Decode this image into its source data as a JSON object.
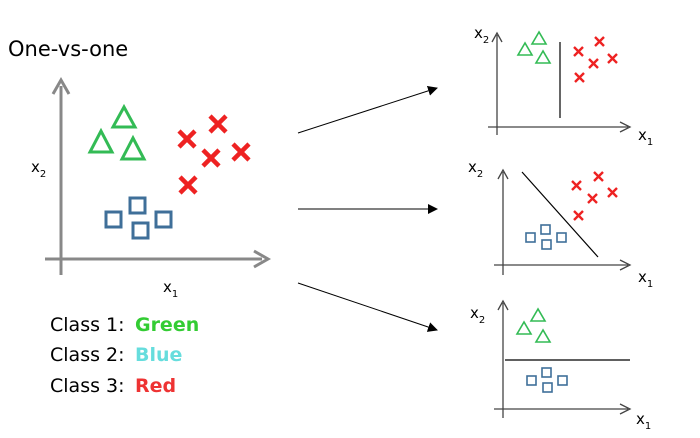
{
  "title": "One-vs-one",
  "axes": {
    "x": "x",
    "y": "x",
    "x_sub": "1",
    "y_sub": "2"
  },
  "legend": [
    {
      "prefix": "Class 1:",
      "name": "Green",
      "color": "#33cc33"
    },
    {
      "prefix": "Class 2:",
      "name": "Blue",
      "color": "#66dddd"
    },
    {
      "prefix": "Class 3:",
      "name": "Red",
      "color": "#ee3333"
    }
  ],
  "colors": {
    "green": "#33bb55",
    "blue": "#3f6f99",
    "red": "#ee2222"
  },
  "panels": [
    {
      "pair": "Green vs Red",
      "boundary": "vertical"
    },
    {
      "pair": "Blue vs Red",
      "boundary": "diagonal"
    },
    {
      "pair": "Green vs Blue",
      "boundary": "horizontal"
    }
  ]
}
